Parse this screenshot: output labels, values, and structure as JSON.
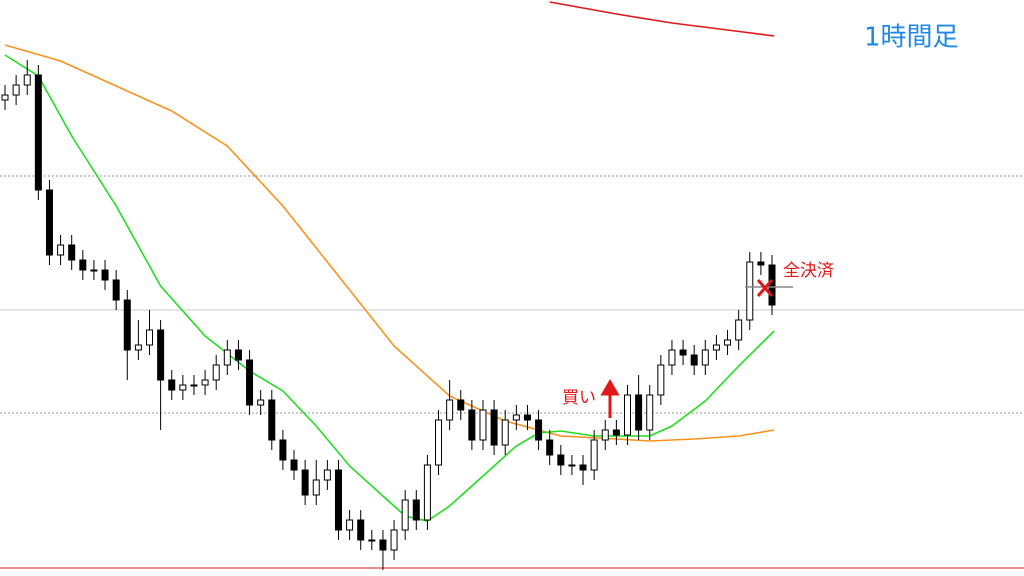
{
  "chart_data": {
    "type": "candlestick",
    "title": "1時間足",
    "xlim": [
      0,
      69
    ],
    "ylim": [
      0,
      576
    ],
    "up_color": "#ffffff",
    "down_color": "#000000",
    "open": [
      476,
      481,
      491,
      501,
      386,
      321,
      331,
      316,
      306,
      306,
      296,
      276,
      226,
      231,
      246,
      196,
      186,
      191,
      191,
      196,
      211,
      226,
      216,
      171,
      176,
      136,
      116,
      106,
      81,
      96,
      106,
      46,
      56,
      36,
      36,
      26,
      46,
      76,
      56,
      111,
      156,
      176,
      166,
      136,
      166,
      131,
      156,
      161,
      156,
      136,
      121,
      111,
      111,
      106,
      136,
      146,
      141,
      181,
      146,
      181,
      211,
      226,
      221,
      211,
      226,
      231,
      236,
      256,
      314,
      311
    ],
    "high": [
      491,
      501,
      516,
      511,
      396,
      341,
      341,
      326,
      316,
      316,
      306,
      286,
      256,
      266,
      256,
      206,
      201,
      201,
      206,
      221,
      236,
      236,
      226,
      186,
      186,
      146,
      126,
      116,
      116,
      116,
      116,
      66,
      66,
      46,
      46,
      56,
      86,
      86,
      121,
      166,
      196,
      186,
      176,
      176,
      176,
      166,
      171,
      171,
      166,
      146,
      131,
      121,
      121,
      146,
      156,
      156,
      191,
      201,
      191,
      221,
      236,
      236,
      231,
      236,
      241,
      246,
      266,
      324,
      324,
      321
    ],
    "low": [
      466,
      471,
      481,
      376,
      311,
      311,
      306,
      296,
      296,
      286,
      266,
      196,
      216,
      221,
      146,
      176,
      176,
      181,
      181,
      186,
      201,
      206,
      161,
      161,
      126,
      106,
      96,
      71,
      71,
      86,
      36,
      36,
      26,
      26,
      6,
      16,
      36,
      46,
      46,
      101,
      146,
      156,
      126,
      126,
      121,
      121,
      146,
      146,
      126,
      111,
      101,
      101,
      91,
      96,
      126,
      131,
      131,
      136,
      136,
      171,
      201,
      211,
      201,
      201,
      216,
      221,
      226,
      246,
      301,
      261
    ],
    "close": [
      481,
      491,
      501,
      386,
      321,
      331,
      316,
      306,
      306,
      296,
      276,
      226,
      231,
      246,
      196,
      186,
      191,
      191,
      196,
      211,
      226,
      216,
      171,
      176,
      136,
      116,
      106,
      81,
      96,
      106,
      46,
      56,
      36,
      36,
      26,
      46,
      76,
      56,
      111,
      156,
      176,
      166,
      136,
      166,
      131,
      156,
      161,
      156,
      136,
      121,
      111,
      111,
      106,
      136,
      146,
      141,
      181,
      146,
      181,
      211,
      226,
      221,
      211,
      226,
      231,
      236,
      256,
      314,
      311,
      271
    ],
    "lines": [
      {
        "color": "#e0181a",
        "x": [
          49,
          55,
          60,
          65,
          69.2
        ],
        "values": [
          574,
          562,
          553,
          546,
          540
        ]
      },
      {
        "color": "#f7921e",
        "x": [
          0,
          5,
          10,
          15,
          20,
          25,
          30,
          35,
          40,
          45,
          50,
          55,
          58,
          62,
          66,
          69.2
        ],
        "values": [
          531,
          515,
          490,
          465,
          430,
          370,
          300,
          230,
          180,
          155,
          140,
          137,
          135,
          137,
          140,
          146
        ]
      },
      {
        "color": "#22dd22",
        "x": [
          0,
          3,
          6,
          10,
          14,
          18,
          22,
          25,
          28,
          31,
          34,
          36,
          38,
          40,
          43,
          46,
          48,
          50,
          53,
          55,
          58,
          60,
          63,
          66,
          69.2
        ],
        "values": [
          521,
          500,
          440,
          370,
          290,
          240,
          205,
          185,
          150,
          110,
          80,
          60,
          55,
          70,
          100,
          130,
          143,
          145,
          140,
          140,
          140,
          150,
          175,
          210,
          245
        ]
      }
    ],
    "annotations": [
      {
        "text": "買い",
        "color": "#e0181a"
      },
      {
        "text": "全決済",
        "color": "#e0181a"
      }
    ]
  }
}
